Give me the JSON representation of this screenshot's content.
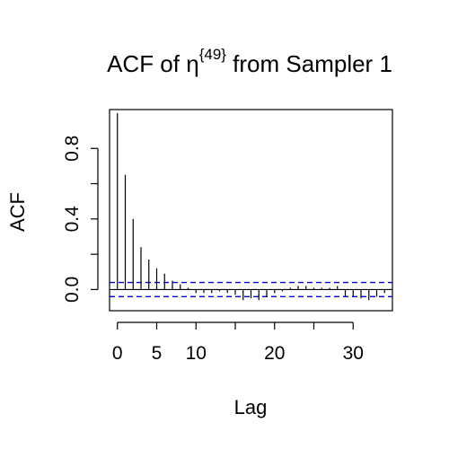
{
  "chart_data": {
    "type": "bar",
    "title": {
      "prefix": "ACF of ",
      "symbol": "η",
      "superscript": "{49}",
      "suffix": " from Sampler 1"
    },
    "xlabel": "Lag",
    "ylabel": "ACF",
    "xlim": [
      -1,
      35
    ],
    "ylim": [
      -0.12,
      1.02
    ],
    "x_ticks": [
      0,
      5,
      10,
      20,
      30
    ],
    "y_ticks": [
      0.0,
      0.4,
      0.8
    ],
    "x_tick_labels": [
      "0",
      "5",
      "10",
      "20",
      "30"
    ],
    "y_tick_labels": [
      "0.0",
      "0.4",
      "0.8"
    ],
    "confidence_band": 0.04,
    "lags": [
      0,
      1,
      2,
      3,
      4,
      5,
      6,
      7,
      8,
      9,
      10,
      11,
      12,
      13,
      14,
      15,
      16,
      17,
      18,
      19,
      20,
      21,
      22,
      23,
      24,
      25,
      26,
      27,
      28,
      29,
      30,
      31,
      32,
      33,
      34
    ],
    "values": [
      1.0,
      0.65,
      0.4,
      0.24,
      0.17,
      0.12,
      0.09,
      0.05,
      0.03,
      0.01,
      -0.02,
      -0.02,
      -0.02,
      -0.01,
      -0.02,
      -0.03,
      -0.06,
      -0.05,
      -0.06,
      -0.04,
      -0.02,
      -0.01,
      0.01,
      0.02,
      0.02,
      0.01,
      0.01,
      0.01,
      0.02,
      -0.04,
      -0.04,
      -0.05,
      -0.06,
      -0.04,
      -0.02
    ],
    "colors": {
      "bars": "#000000",
      "band": "#0000cc",
      "axis": "#000000"
    },
    "grid": false,
    "legend": "none"
  }
}
